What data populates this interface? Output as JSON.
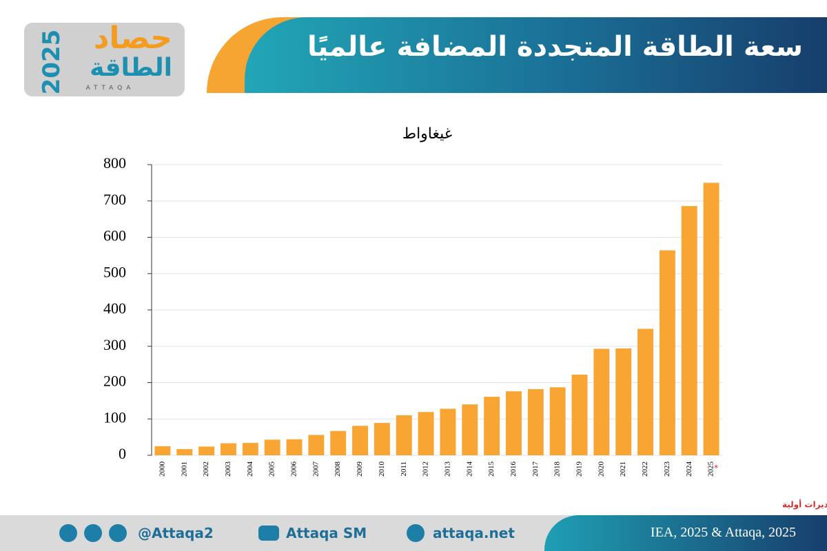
{
  "header": {
    "title": "سعة الطاقة المتجددة المضافة عالميًا"
  },
  "logo": {
    "word": "حصاد",
    "brand": "الطاقة",
    "year": "2025",
    "latin": "ATTAQA"
  },
  "chart_data": {
    "type": "bar",
    "y_label": "غيغاواط",
    "categories": [
      "2000",
      "2001",
      "2002",
      "2003",
      "2004",
      "2005",
      "2006",
      "2007",
      "2008",
      "2009",
      "2010",
      "2011",
      "2012",
      "2013",
      "2014",
      "2015",
      "2016",
      "2017",
      "2018",
      "2019",
      "2020",
      "2021",
      "2022",
      "2023",
      "2024",
      "2025"
    ],
    "values": [
      25,
      17,
      24,
      33,
      34,
      43,
      44,
      56,
      67,
      81,
      89,
      110,
      119,
      128,
      140,
      161,
      176,
      182,
      187,
      222,
      293,
      294,
      348,
      564,
      686,
      750
    ],
    "color": "#f9a533",
    "ylim": [
      0,
      800
    ],
    "yticks": [
      0,
      100,
      200,
      300,
      400,
      500,
      600,
      700,
      800
    ],
    "grid": true,
    "estimate_marker": "*",
    "footnote": "*تقديرات أولية"
  },
  "footer": {
    "twitter": "@Attaqa2",
    "youtube": "Attaqa SM",
    "website": "attaqa.net",
    "source": "IEA, 2025 & Attaqa, 2025"
  }
}
